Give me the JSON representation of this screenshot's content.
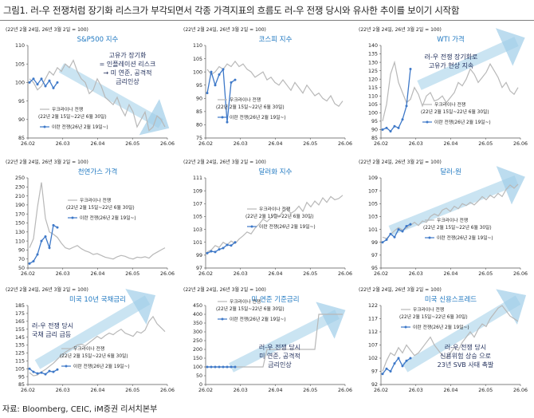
{
  "figure_title": "그림1.  러-우 전쟁처럼 장기화 리스크가 부각되면서 각종 가격지표의 흐름도 러-우 전쟁 당시와 유사한 추이를 보이기 시작함",
  "source": "자료: Bloomberg, CEIC, iM증권 리서치본부",
  "colors": {
    "russia": "#b8b8b8",
    "iran": "#3d78c8",
    "arrow": "#9fcde8",
    "title": "#1f78c1"
  },
  "chart_data": [
    {
      "type": "line",
      "title": "S&P500 지수",
      "note": "(22년 2월 24일, 26년 3월 2일 = 100)",
      "x_ticks": [
        "26.02",
        "26.03",
        "26.04",
        "26.05",
        "26.06"
      ],
      "ylim": [
        85,
        110
      ],
      "y_ticks": [
        85,
        90,
        95,
        100,
        105,
        110
      ],
      "legend": [
        "우크라이나 전쟁",
        "(22년 2월 15일~22년 6월 30일)",
        "이란 전쟁(26년 2월 19일~)"
      ],
      "annotation": [
        "고유가 장기화",
        "= 인플레이션 리스크",
        "→ 미 연준, 공격적",
        "금리인상"
      ],
      "series": [
        {
          "style": "ukraine",
          "values": [
            101,
            100,
            98,
            99,
            101,
            103,
            102,
            104,
            103,
            105,
            104,
            106,
            103,
            101,
            100,
            97,
            98,
            101,
            99,
            96,
            95,
            94,
            96,
            93,
            91,
            94,
            92,
            88,
            90,
            92,
            87,
            88,
            91,
            90,
            88
          ]
        },
        {
          "style": "iran",
          "values": [
            100,
            101,
            99.5,
            101,
            99,
            100.5,
            98.5,
            100
          ]
        }
      ]
    },
    {
      "type": "line",
      "title": "코스피 지수",
      "note": "(22년 2월 24일, 26년 3월 2일 = 100)",
      "x_ticks": [
        "26.02",
        "26.03",
        "26.04",
        "26.05",
        "26.06"
      ],
      "ylim": [
        75,
        110
      ],
      "y_ticks": [
        75,
        80,
        85,
        90,
        95,
        100,
        105,
        110
      ],
      "legend": [
        "우크라이나 전쟁",
        "(22년 2월 15일~22년 6월 30일)",
        "이란 전쟁(26년 2월 19일~)"
      ],
      "annotation": [],
      "series": [
        {
          "style": "ukraine",
          "values": [
            101,
            99,
            100,
            102,
            101,
            103,
            102,
            104,
            102,
            103,
            101,
            100,
            98,
            99,
            100,
            97,
            98,
            96,
            95,
            97,
            95,
            93,
            96,
            94,
            92,
            95,
            93,
            91,
            92,
            90,
            89,
            91,
            88,
            87,
            89
          ]
        },
        {
          "style": "iran",
          "values": [
            92,
            100,
            95,
            99,
            101,
            81,
            96,
            97
          ]
        }
      ]
    },
    {
      "type": "line",
      "title": "WTI 가격",
      "note": "(22년 2월 24일, 26년 3월 2일 = 100)",
      "x_ticks": [
        "26.02",
        "26.03",
        "26.04",
        "26.05",
        "26.06"
      ],
      "ylim": [
        85,
        140
      ],
      "y_ticks": [
        85,
        90,
        95,
        100,
        105,
        110,
        115,
        120,
        125,
        130,
        135,
        140
      ],
      "legend": [
        "우크라이나 전쟁",
        "(22년 2월 15일~22년 6월 30일)",
        "이란 전쟁(26년 2월 19일~)"
      ],
      "annotation": [
        "러-우 전쟁 장기화로",
        "고유가 현상 지속"
      ],
      "series": [
        {
          "style": "ukraine",
          "values": [
            95,
            105,
            123,
            130,
            118,
            112,
            106,
            108,
            115,
            111,
            104,
            110,
            112,
            107,
            108,
            110,
            106,
            109,
            112,
            118,
            116,
            120,
            126,
            123,
            118,
            121,
            124,
            129,
            125,
            121,
            115,
            118,
            113,
            111,
            115
          ]
        },
        {
          "style": "iran",
          "values": [
            90,
            91,
            89,
            92,
            91,
            96,
            104,
            126
          ]
        }
      ]
    },
    {
      "type": "line",
      "title": "천연가스 가격",
      "note": "(22년 2월 24일, 26년 3월 2일 = 100)",
      "x_ticks": [
        "26.02",
        "26.03",
        "26.04",
        "26.05",
        "26.06"
      ],
      "ylim": [
        50,
        250
      ],
      "y_ticks": [
        50,
        70,
        90,
        110,
        130,
        150,
        170,
        190,
        210,
        230,
        250
      ],
      "legend": [
        "우크라이나 전쟁",
        "(22년 2월 15일~22년 6월 30일)",
        "이란 전쟁(26년 2월 19일~)"
      ],
      "annotation": [],
      "series": [
        {
          "style": "ukraine",
          "values": [
            95,
            115,
            185,
            240,
            160,
            130,
            125,
            118,
            105,
            95,
            92,
            96,
            100,
            93,
            88,
            85,
            80,
            82,
            78,
            74,
            72,
            70,
            75,
            78,
            76,
            72,
            70,
            74,
            73,
            75,
            72,
            80,
            85,
            90,
            95
          ]
        },
        {
          "style": "iran",
          "values": [
            60,
            65,
            80,
            110,
            120,
            95,
            145,
            140
          ]
        }
      ]
    },
    {
      "type": "line",
      "title": "달러화 지수",
      "note": "(22년 2월 24일, 26년 3월 2일 = 100)",
      "x_ticks": [
        "26.02",
        "26.03",
        "26.04",
        "26.05",
        "26.06"
      ],
      "ylim": [
        97,
        111
      ],
      "y_ticks": [
        97,
        99,
        101,
        103,
        105,
        107,
        109,
        111
      ],
      "legend": [
        "우크라이나 전쟁",
        "(22년 2월 15일~22년 6월 30일)",
        "이란 전쟁(26년 2월 19일~)"
      ],
      "annotation": [],
      "series": [
        {
          "style": "ukraine",
          "values": [
            99.5,
            99.8,
            100.5,
            100.2,
            101,
            100.6,
            101.2,
            100.8,
            101.5,
            102,
            102.6,
            102.3,
            103.2,
            103.8,
            104.6,
            104.2,
            104.8,
            105.4,
            104.9,
            105.8,
            106.2,
            105.5,
            105.9,
            106.6,
            105.8,
            107.2,
            106.5,
            107.4,
            106.8,
            107.9,
            107.2,
            108.1,
            107.6,
            107.8,
            108.3
          ]
        },
        {
          "style": "iran",
          "values": [
            99.3,
            99.6,
            99.5,
            99.9,
            100.1,
            100.6,
            100.5,
            101.0
          ]
        }
      ]
    },
    {
      "type": "line",
      "title": "달러-원",
      "note": "(22년 2월 24일, 26년 3월 2일 = 100)",
      "x_ticks": [
        "26.02",
        "26.03",
        "26.04",
        "26.05",
        "26.06"
      ],
      "ylim": [
        95,
        109
      ],
      "y_ticks": [
        95,
        97,
        99,
        101,
        103,
        105,
        107,
        109
      ],
      "legend": [
        "우크라이나 전쟁",
        "(22년 2월 15일~22년 6월 30일)",
        "이란 전쟁(26년 2월 19일~)"
      ],
      "annotation": [],
      "series": [
        {
          "style": "ukraine",
          "values": [
            99.8,
            99.6,
            100.2,
            100.8,
            101.3,
            100.9,
            101.2,
            101.6,
            102.1,
            101.6,
            102.3,
            102.1,
            103.0,
            103.4,
            103.1,
            104.0,
            104.3,
            103.8,
            104.6,
            104.2,
            105.0,
            104.7,
            105.2,
            104.8,
            105.4,
            106.1,
            105.6,
            106.3,
            105.9,
            106.6,
            106.1,
            107.2,
            107.9,
            107.4,
            108.0
          ]
        },
        {
          "style": "iran",
          "values": [
            99.0,
            99.4,
            100.3,
            99.8,
            101.0,
            100.7,
            101.5,
            101.8
          ]
        }
      ]
    },
    {
      "type": "line",
      "title": "미국 10년 국채금리",
      "note": "(22년 2월 24일, 26년 3월 2일 = 100)",
      "x_ticks": [
        "26.02",
        "26.03",
        "26.04",
        "26.05",
        "26.06"
      ],
      "ylim": [
        85,
        185
      ],
      "y_ticks": [
        85,
        95,
        105,
        115,
        125,
        135,
        145,
        155,
        165,
        175,
        185
      ],
      "legend": [
        "우크라이나 전쟁",
        "(22년 2월 15일~22년 6월 30일)",
        "이란 전쟁(26년 2월 19일~)"
      ],
      "annotation": [
        "러-우 전쟁 당시",
        "국채 금리 급등"
      ],
      "series": [
        {
          "style": "ukraine",
          "values": [
            100,
            96,
            97,
            101,
            104,
            108,
            112,
            117,
            122,
            126,
            129,
            132,
            135,
            136,
            134,
            138,
            142,
            146,
            143,
            147,
            150,
            148,
            152,
            155,
            150,
            148,
            146,
            152,
            150,
            154,
            165,
            171,
            162,
            157,
            152
          ]
        },
        {
          "style": "iran",
          "values": [
            105,
            101,
            99,
            100,
            98,
            102,
            101,
            104
          ]
        }
      ]
    },
    {
      "type": "line",
      "title": "미 연준 기준금리",
      "note": "(22년 2월 24일, 26년 3월 2일 = 100)",
      "x_ticks": [
        "26.02",
        "26.03",
        "26.04",
        "26.05",
        "26.06"
      ],
      "ylim": [
        0,
        450
      ],
      "y_ticks": [
        0,
        50,
        100,
        150,
        200,
        250,
        300,
        350,
        400,
        450
      ],
      "legend": [
        "우크라이나 전쟁",
        "(22년 2월 15일~22년 6월 30일)",
        "이란 전쟁(26년 2월 19일~)"
      ],
      "annotation": [
        "러-우 전쟁 당시",
        "미 연준, 공격적",
        "금리인상"
      ],
      "series": [
        {
          "style": "ukraine",
          "values": [
            100,
            100,
            100,
            100,
            100,
            100,
            100,
            100,
            100,
            100,
            100,
            100,
            100,
            100,
            100,
            200,
            200,
            200,
            200,
            200,
            200,
            200,
            200,
            200,
            200,
            200,
            200,
            200,
            400,
            400,
            400,
            400,
            400,
            400,
            400
          ]
        },
        {
          "style": "iran",
          "values": [
            100,
            100,
            100,
            100,
            100,
            100,
            100,
            100
          ]
        }
      ]
    },
    {
      "type": "line",
      "title": "미국 신용스프레드",
      "note": "(22년 2월 24일, 26년 3월 2일 = 100)",
      "x_ticks": [
        "26.02",
        "26.03",
        "26.04",
        "26.05",
        "26.06"
      ],
      "ylim": [
        92,
        122
      ],
      "y_ticks": [
        92,
        97,
        102,
        107,
        112,
        117,
        122
      ],
      "legend": [
        "우크라이나 전쟁",
        "(22년 2월 15일~22년 6월 30일)",
        "이란 전쟁(26년 2월 19일~)"
      ],
      "annotation": [
        "러-우 전쟁 당시",
        "신용위험 상승 으로",
        "23년 SVB 사태 촉발"
      ],
      "series": [
        {
          "style": "ukraine",
          "values": [
            97,
            101,
            104,
            103,
            106,
            104,
            107,
            105,
            103,
            104,
            106,
            108,
            110,
            107,
            105,
            103,
            102,
            104,
            106,
            105,
            108,
            110,
            112,
            110,
            113,
            115,
            114,
            117,
            119,
            121,
            122,
            120,
            118,
            117,
            116
          ]
        },
        {
          "style": "iran",
          "values": [
            96,
            98,
            97,
            100,
            102,
            99,
            101,
            102
          ]
        }
      ]
    }
  ]
}
